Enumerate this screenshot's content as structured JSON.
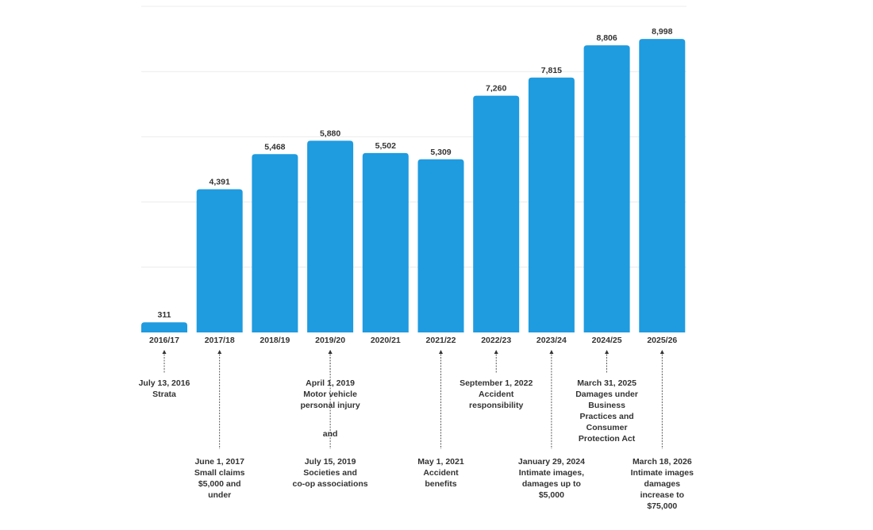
{
  "chart_data": {
    "type": "bar",
    "categories": [
      "2016/17",
      "2017/18",
      "2018/19",
      "2019/20",
      "2020/21",
      "2021/22",
      "2022/23",
      "2023/24",
      "2024/25",
      "2025/26"
    ],
    "values": [
      311,
      4391,
      5468,
      5880,
      5502,
      5309,
      7260,
      7815,
      8806,
      8998
    ],
    "value_labels": [
      "311",
      "4,391",
      "5,468",
      "5,880",
      "5,502",
      "5,309",
      "7,260",
      "7,815",
      "8,806",
      "8,998"
    ],
    "ylim": [
      0,
      10000
    ],
    "grid": true,
    "bar_color": "#1f9be0",
    "title": "",
    "xlabel": "",
    "ylabel": "",
    "annotations": [
      {
        "category": "2016/17",
        "row": "upper",
        "text": "July 13, 2016\nStrata"
      },
      {
        "category": "2017/18",
        "row": "lower",
        "text": "June 1, 2017\nSmall claims\n$5,000 and\nunder"
      },
      {
        "category": "2019/20",
        "row": "upper",
        "text": "April 1, 2019\nMotor vehicle\npersonal injury"
      },
      {
        "category": "2019/20",
        "row": "middle",
        "text": "and"
      },
      {
        "category": "2019/20",
        "row": "lower",
        "text": "July 15, 2019\nSocieties and\nco-op associations"
      },
      {
        "category": "2021/22",
        "row": "lower",
        "text": "May 1, 2021\nAccident\nbenefits"
      },
      {
        "category": "2022/23",
        "row": "upper",
        "text": "September 1, 2022\nAccident\nresponsibility"
      },
      {
        "category": "2023/24",
        "row": "lower",
        "text": "January 29, 2024\nIntimate images,\ndamages up to\n$5,000"
      },
      {
        "category": "2024/25",
        "row": "upper",
        "text": "March 31, 2025\nDamages under\nBusiness\nPractices and\nConsumer\nProtection Act"
      },
      {
        "category": "2025/26",
        "row": "lower",
        "text": "March 18, 2026\nIntimate images\ndamages\nincrease to\n$75,000"
      }
    ]
  }
}
